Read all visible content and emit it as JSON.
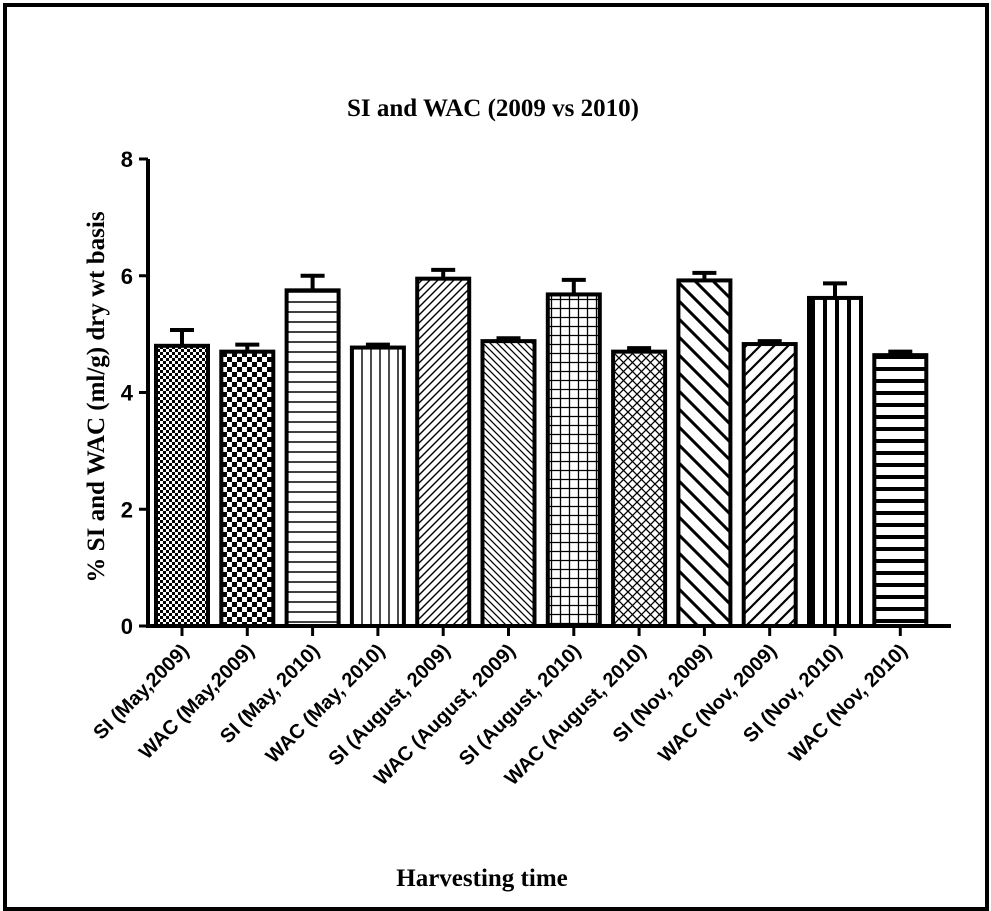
{
  "chart_data": {
    "type": "bar",
    "title": "SI and WAC (2009 vs 2010)",
    "xlabel": "Harvesting time",
    "ylabel": "% SI and WAC (ml/g) dry wt basis",
    "ylim": [
      0,
      8
    ],
    "yticks": [
      "0",
      "2",
      "4",
      "6",
      "8"
    ],
    "categories": [
      "SI (May,2009)",
      "WAC (May,2009)",
      "SI (May, 2010)",
      "WAC (May, 2010)",
      "SI (August, 2009)",
      "WAC (August, 2009)",
      "SI (August, 2010)",
      "WAC (August, 2010)",
      "SI (Nov, 2009)",
      "WAC (Nov, 2009)",
      "SI (Nov, 2010)",
      "WAC (Nov, 2010)"
    ],
    "values": [
      4.8,
      4.7,
      5.75,
      4.77,
      5.95,
      4.88,
      5.68,
      4.7,
      5.92,
      4.83,
      5.62,
      4.64
    ],
    "errors": [
      0.27,
      0.12,
      0.25,
      0.05,
      0.15,
      0.05,
      0.25,
      0.06,
      0.13,
      0.05,
      0.25,
      0.06
    ],
    "patterns": [
      "dots-fine",
      "checker",
      "hlines",
      "vlines-fine",
      "diag-fine-up",
      "diag-fine-down",
      "grid",
      "crosshatch-diag",
      "diag-wide-down",
      "diag-wide-up",
      "vlines-bold",
      "hlines-bold"
    ],
    "grid": false,
    "legend": "none",
    "colors": {
      "stroke": "#000000",
      "fill": "#ffffff"
    }
  }
}
